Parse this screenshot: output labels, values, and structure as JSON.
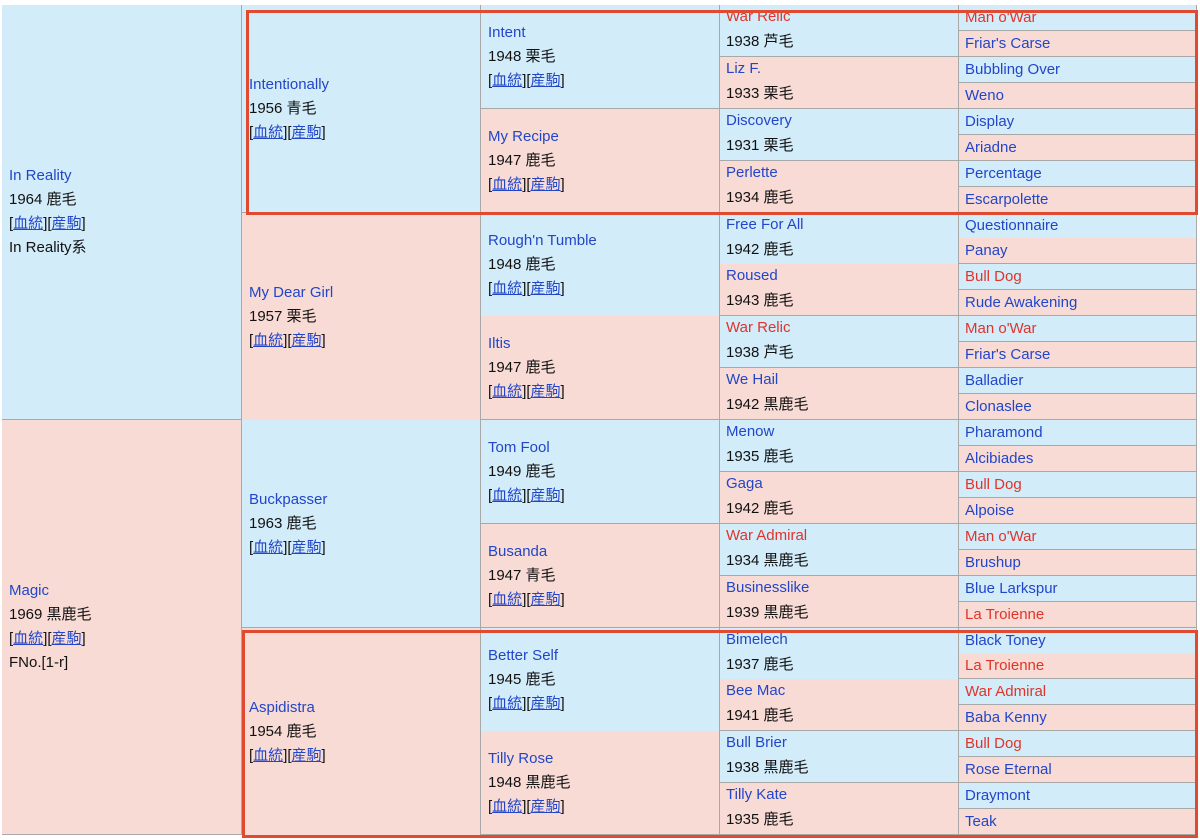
{
  "generation1": [
    {
      "name": "In Reality",
      "info": "1964 鹿毛",
      "link_a": "血統",
      "link_b": "産駒",
      "extra": "In Reality系"
    },
    {
      "name": "Magic",
      "info": "1969 黒鹿毛",
      "link_a": "血統",
      "link_b": "産駒",
      "extra": "FNo.[1-r]"
    }
  ],
  "generation2": [
    {
      "name": "Intentionally",
      "info": "1956 青毛",
      "link_a": "血統",
      "link_b": "産駒"
    },
    {
      "name": "My Dear Girl",
      "info": "1957 栗毛",
      "link_a": "血統",
      "link_b": "産駒"
    },
    {
      "name": "Buckpasser",
      "info": "1963 鹿毛",
      "link_a": "血統",
      "link_b": "産駒"
    },
    {
      "name": "Aspidistra",
      "info": "1954 鹿毛",
      "link_a": "血統",
      "link_b": "産駒"
    }
  ],
  "generation3": [
    {
      "name": "Intent",
      "info": "1948 栗毛",
      "link_a": "血統",
      "link_b": "産駒"
    },
    {
      "name": "My Recipe",
      "info": "1947 鹿毛",
      "link_a": "血統",
      "link_b": "産駒"
    },
    {
      "name": "Rough'n Tumble",
      "info": "1948 鹿毛",
      "link_a": "血統",
      "link_b": "産駒"
    },
    {
      "name": "Iltis",
      "info": "1947 鹿毛",
      "link_a": "血統",
      "link_b": "産駒"
    },
    {
      "name": "Tom Fool",
      "info": "1949 鹿毛",
      "link_a": "血統",
      "link_b": "産駒"
    },
    {
      "name": "Busanda",
      "info": "1947 青毛",
      "link_a": "血統",
      "link_b": "産駒"
    },
    {
      "name": "Better Self",
      "info": "1945 鹿毛",
      "link_a": "血統",
      "link_b": "産駒"
    },
    {
      "name": "Tilly Rose",
      "info": "1948 黒鹿毛",
      "link_a": "血統",
      "link_b": "産駒"
    }
  ],
  "generation4": [
    {
      "name": "War Relic",
      "info": "1938 芦毛",
      "red": true
    },
    {
      "name": "Liz F.",
      "info": "1933 栗毛",
      "red": false
    },
    {
      "name": "Discovery",
      "info": "1931 栗毛",
      "red": false
    },
    {
      "name": "Perlette",
      "info": "1934 鹿毛",
      "red": false
    },
    {
      "name": "Free For All",
      "info": "1942 鹿毛",
      "red": false
    },
    {
      "name": "Roused",
      "info": "1943 鹿毛",
      "red": false
    },
    {
      "name": "War Relic",
      "info": "1938 芦毛",
      "red": true
    },
    {
      "name": "We Hail",
      "info": "1942 黒鹿毛",
      "red": false
    },
    {
      "name": "Menow",
      "info": "1935 鹿毛",
      "red": false
    },
    {
      "name": "Gaga",
      "info": "1942 鹿毛",
      "red": false
    },
    {
      "name": "War Admiral",
      "info": "1934 黒鹿毛",
      "red": true
    },
    {
      "name": "Businesslike",
      "info": "1939 黒鹿毛",
      "red": false
    },
    {
      "name": "Bimelech",
      "info": "1937 鹿毛",
      "red": false
    },
    {
      "name": "Bee Mac",
      "info": "1941 鹿毛",
      "red": false
    },
    {
      "name": "Bull Brier",
      "info": "1938 黒鹿毛",
      "red": false
    },
    {
      "name": "Tilly Kate",
      "info": "1935 鹿毛",
      "red": false
    }
  ],
  "generation5": [
    {
      "name": "Man o'War",
      "red": true
    },
    {
      "name": "Friar's Carse",
      "red": false
    },
    {
      "name": "Bubbling Over",
      "red": false
    },
    {
      "name": "Weno",
      "red": false
    },
    {
      "name": "Display",
      "red": false
    },
    {
      "name": "Ariadne",
      "red": false
    },
    {
      "name": "Percentage",
      "red": false
    },
    {
      "name": "Escarpolette",
      "red": false
    },
    {
      "name": "Questionnaire",
      "red": false
    },
    {
      "name": "Panay",
      "red": false
    },
    {
      "name": "Bull Dog",
      "red": true
    },
    {
      "name": "Rude Awakening",
      "red": false
    },
    {
      "name": "Man o'War",
      "red": true
    },
    {
      "name": "Friar's Carse",
      "red": false
    },
    {
      "name": "Balladier",
      "red": false
    },
    {
      "name": "Clonaslee",
      "red": false
    },
    {
      "name": "Pharamond",
      "red": false
    },
    {
      "name": "Alcibiades",
      "red": false
    },
    {
      "name": "Bull Dog",
      "red": true
    },
    {
      "name": "Alpoise",
      "red": false
    },
    {
      "name": "Man o'War",
      "red": true
    },
    {
      "name": "Brushup",
      "red": false
    },
    {
      "name": "Blue Larkspur",
      "red": false
    },
    {
      "name": "La Troienne",
      "red": true
    },
    {
      "name": "Black Toney",
      "red": false
    },
    {
      "name": "La Troienne",
      "red": true
    },
    {
      "name": "War Admiral",
      "red": true
    },
    {
      "name": "Baba Kenny",
      "red": false
    },
    {
      "name": "Bull Dog",
      "red": true
    },
    {
      "name": "Rose Eternal",
      "red": false
    },
    {
      "name": "Draymont",
      "red": false
    },
    {
      "name": "Teak",
      "red": false
    }
  ],
  "colors": {
    "sire_bg": "#d2ecfa",
    "dam_bg": "#f9dbd6",
    "link": "#2246c8",
    "highlight_name": "#e0342a",
    "frame": "#e04a30"
  }
}
